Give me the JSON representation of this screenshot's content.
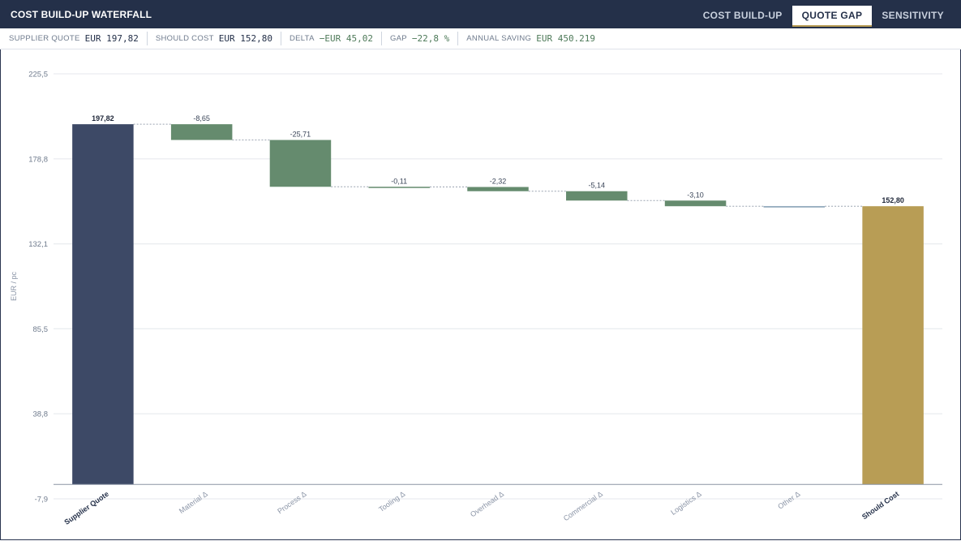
{
  "header": {
    "title": "COST BUILD-UP WATERFALL",
    "tabs": [
      {
        "label": "COST BUILD-UP",
        "active": false
      },
      {
        "label": "QUOTE GAP",
        "active": true
      },
      {
        "label": "SENSITIVITY",
        "active": false
      }
    ]
  },
  "kpis": {
    "supplier_quote": {
      "label": "SUPPLIER QUOTE",
      "value": "EUR 197,82"
    },
    "should_cost": {
      "label": "SHOULD COST",
      "value": "EUR 152,80"
    },
    "delta": {
      "label": "DELTA",
      "value": "−EUR 45,02"
    },
    "gap": {
      "label": "GAP",
      "value": "−22,8 %"
    },
    "annual_saving": {
      "label": "ANNUAL SAVING",
      "value": "EUR 450.219"
    }
  },
  "colors": {
    "header_bg": "#243049",
    "total_start": "#3d4966",
    "total_end": "#b89d55",
    "decrease": "#658b6e",
    "neutral": "#7f9ab0",
    "connector": "#9aa3b0",
    "grid": "#e4e7ec",
    "positive_text": "#4e7a59"
  },
  "chart_data": {
    "type": "bar",
    "subtype": "waterfall",
    "ylabel": "EUR / pc",
    "ylim": [
      -7.9,
      225.5
    ],
    "yticks": [
      "225,5",
      "178,8",
      "132,1",
      "85,5",
      "38,8",
      "-7,9"
    ],
    "ytick_values": [
      225.5,
      178.8,
      132.1,
      85.5,
      38.8,
      -7.9
    ],
    "grid": true,
    "categories": [
      "Supplier Quote",
      "Material Δ",
      "Process Δ",
      "Tooling Δ",
      "Overhead Δ",
      "Commercial Δ",
      "Logistics Δ",
      "Other Δ",
      "Should Cost"
    ],
    "values": [
      197.82,
      -8.65,
      -25.71,
      -0.11,
      -2.32,
      -5.14,
      -3.1,
      0.01,
      152.8
    ],
    "kinds": [
      "total",
      "delta",
      "delta",
      "delta",
      "delta",
      "delta",
      "delta",
      "neutral",
      "total"
    ],
    "data_labels": [
      "197,82",
      "-8,65",
      "-25,71",
      "-0,11",
      "-2,32",
      "-5,14",
      "-3,10",
      "",
      "152,80"
    ]
  }
}
